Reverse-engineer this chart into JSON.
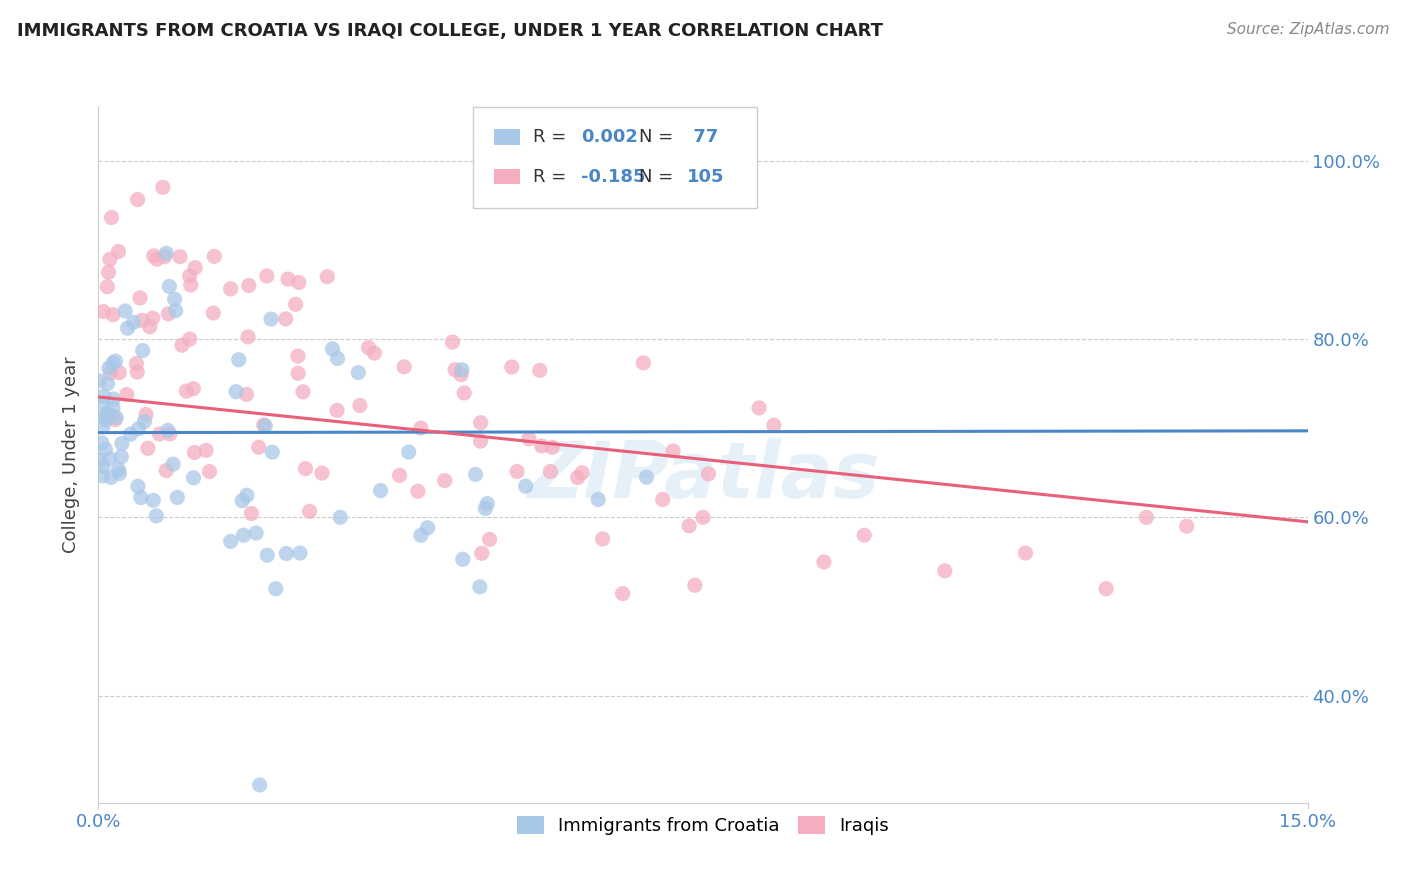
{
  "title": "IMMIGRANTS FROM CROATIA VS IRAQI COLLEGE, UNDER 1 YEAR CORRELATION CHART",
  "source": "Source: ZipAtlas.com",
  "ylabel": "College, Under 1 year",
  "xlim": [
    0.0,
    0.15
  ],
  "ylim": [
    0.28,
    1.06
  ],
  "croatia_color": "#a8c8e8",
  "iraq_color": "#f4aec0",
  "croatia_R": 0.002,
  "croatia_N": 77,
  "iraq_R": -0.185,
  "iraq_N": 105,
  "trend_croatia_color": "#4a86c8",
  "trend_iraq_color": "#e8607a",
  "legend_label_croatia": "Immigrants from Croatia",
  "legend_label_iraq": "Iraqis",
  "watermark": "ZIPatlas",
  "title_color": "#222222",
  "axis_label_color": "#4a86c8",
  "grid_color": "#cccccc",
  "source_color": "#888888",
  "ylabel_color": "#444444",
  "legend_text_color": "#333333",
  "legend_value_color": "#4a86c8"
}
